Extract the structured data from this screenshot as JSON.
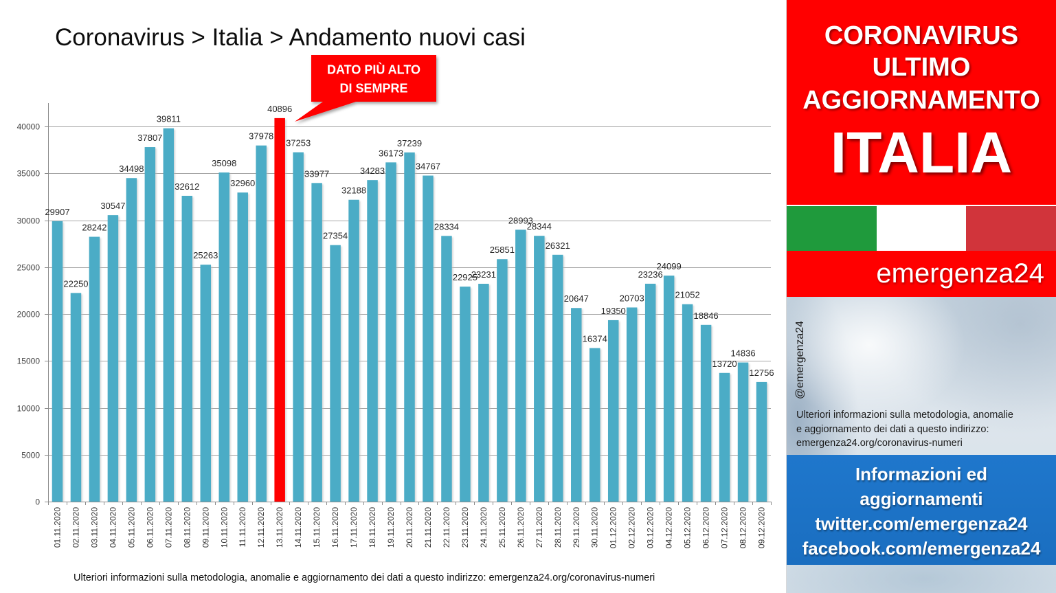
{
  "chart_data": {
    "type": "bar",
    "title": "Coronavirus > Italia > Andamento nuovi casi",
    "xlabel": "",
    "ylabel": "",
    "categories": [
      "01.11.2020",
      "02.11.2020",
      "03.11.2020",
      "04.11.2020",
      "05.11.2020",
      "06.11.2020",
      "07.11.2020",
      "08.11.2020",
      "09.11.2020",
      "10.11.2020",
      "11.11.2020",
      "12.11.2020",
      "13.11.2020",
      "14.11.2020",
      "15.11.2020",
      "16.11.2020",
      "17.11.2020",
      "18.11.2020",
      "19.11.2020",
      "20.11.2020",
      "21.11.2020",
      "22.11.2020",
      "23.11.2020",
      "24.11.2020",
      "25.11.2020",
      "26.11.2020",
      "27.11.2020",
      "28.11.2020",
      "29.11.2020",
      "30.11.2020",
      "01.12.2020",
      "02.12.2020",
      "03.12.2020",
      "04.12.2020",
      "05.12.2020",
      "06.12.2020",
      "07.12.2020",
      "08.12.2020",
      "09.12.2020"
    ],
    "values": [
      29907,
      22250,
      28242,
      30547,
      34498,
      37807,
      39811,
      32612,
      25263,
      35098,
      32960,
      37978,
      40896,
      37253,
      33977,
      27354,
      32188,
      34283,
      36173,
      37239,
      34767,
      28334,
      22925,
      23231,
      25851,
      28993,
      28344,
      26321,
      20647,
      16374,
      19350,
      20703,
      23236,
      24099,
      21052,
      18846,
      13720,
      14836,
      12756
    ],
    "ylim": [
      0,
      42500
    ],
    "yticks": [
      0,
      5000,
      10000,
      15000,
      20000,
      25000,
      30000,
      35000,
      40000
    ],
    "grid": true,
    "legend": "none",
    "data_labels": true,
    "annotation": [
      "DATO PIÙ ALTO",
      "DI SEMPRE"
    ],
    "colors": {
      "bar": "#4bacc6",
      "record_bar": "#ff0000",
      "grid": "#a6a6a6",
      "axis": "#8c8c8c",
      "callout": "#ff0000"
    }
  },
  "footer_note": "Ulteriori informazioni sulla metodologia, anomalie e aggiornamento dei dati a questo indirizzo: emergenza24.org/coronavirus-numeri",
  "side_panel": {
    "headline": [
      "CORONAVIRUS",
      "ULTIMO",
      "AGGIORNAMENTO"
    ],
    "country": "ITALIA",
    "flag_colors": [
      "#1f9a3c",
      "#ffffff",
      "#d1343b"
    ],
    "brand": "emergenza24",
    "handle": "@emergenza24",
    "note_lines": [
      "Ulteriori informazioni sulla metodologia, anomalie",
      "e aggiornamento dei dati a questo indirizzo:",
      "emergenza24.org/coronavirus-numeri"
    ],
    "info_lines": [
      "Informazioni ed",
      "aggiornamenti",
      "twitter.com/emergenza24",
      "facebook.com/emergenza24"
    ],
    "colors": {
      "header_red": "#ff0000",
      "info_blue": "#1c72c6"
    }
  }
}
